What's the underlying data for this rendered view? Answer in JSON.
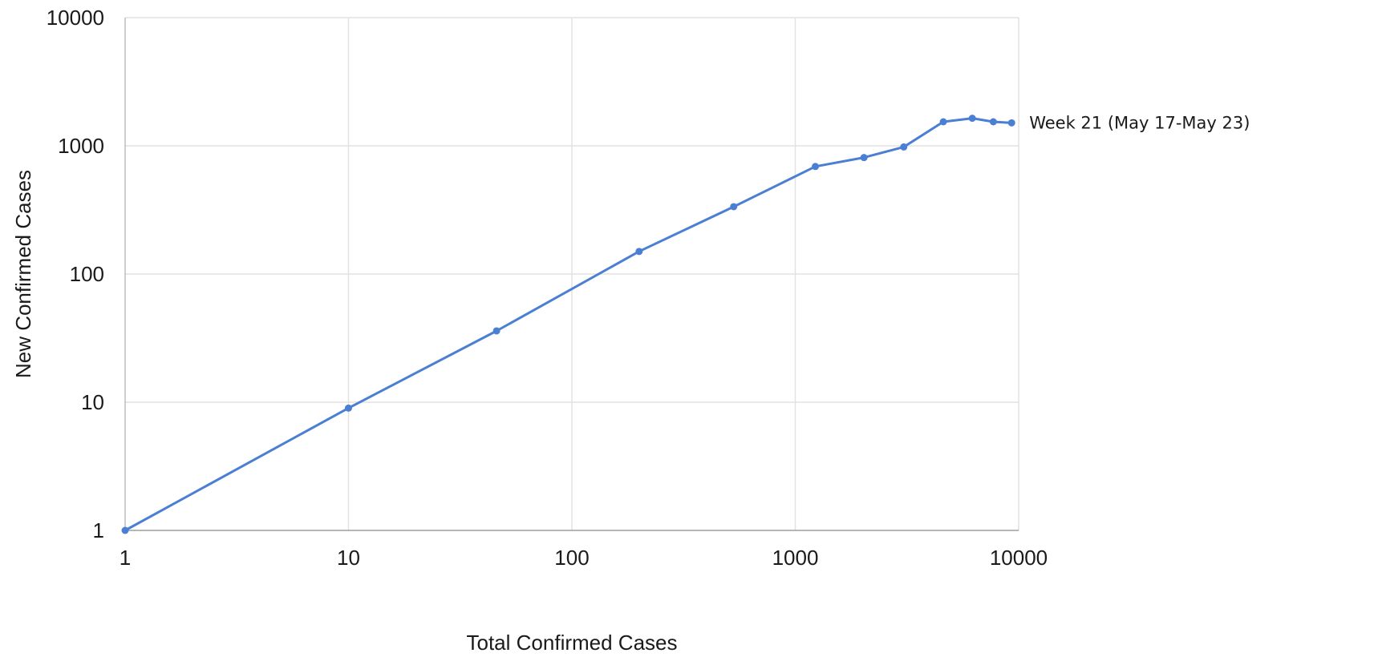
{
  "chart_data": {
    "type": "line",
    "x_scale": "log",
    "y_scale": "log",
    "xlim": [
      1,
      10000
    ],
    "ylim": [
      1,
      10000
    ],
    "grid": true,
    "xlabel": "Total Confirmed Cases",
    "ylabel": "New Confirmed Cases",
    "x_ticks": [
      1,
      10,
      100,
      1000,
      10000
    ],
    "y_ticks": [
      1,
      10,
      100,
      1000,
      10000
    ],
    "x_tick_labels": [
      "1",
      "10",
      "100",
      "1000",
      "10000"
    ],
    "y_tick_labels": [
      "1",
      "10",
      "100",
      "1000",
      "10000"
    ],
    "colors": {
      "line": "#4a7fd4",
      "grid": "#e2e2e2",
      "axis": "#bdbdbd"
    },
    "series": [
      {
        "x": [
          1,
          10,
          46,
          200,
          530,
          1230,
          2030,
          3060,
          4600,
          6200,
          7700,
          9300
        ],
        "y": [
          1,
          9,
          36,
          150,
          335,
          690,
          810,
          980,
          1540,
          1640,
          1540,
          1510
        ]
      }
    ],
    "annotations": [
      {
        "text": "Week 21 (May 17-May 23)",
        "x": 9300,
        "y": 1510
      }
    ]
  }
}
